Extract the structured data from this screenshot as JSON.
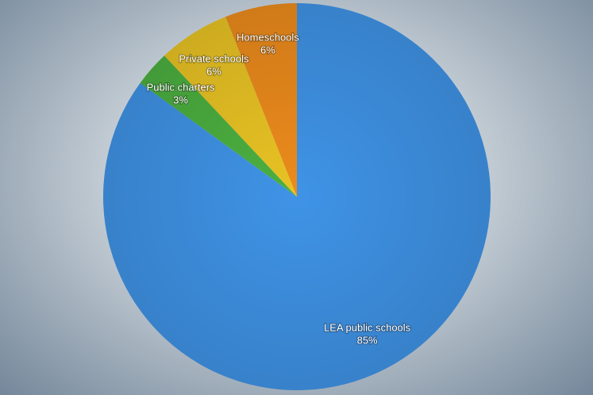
{
  "chart_data": {
    "type": "pie",
    "categories": [
      "LEA public schools",
      "Public charters",
      "Private schools",
      "Homeschools"
    ],
    "values": [
      85,
      3,
      6,
      6
    ],
    "value_labels": [
      "85%",
      "3%",
      "6%",
      "6%"
    ],
    "colors": [
      "#3f93e6",
      "#4cb040",
      "#e9c324",
      "#ec8b1c"
    ]
  }
}
